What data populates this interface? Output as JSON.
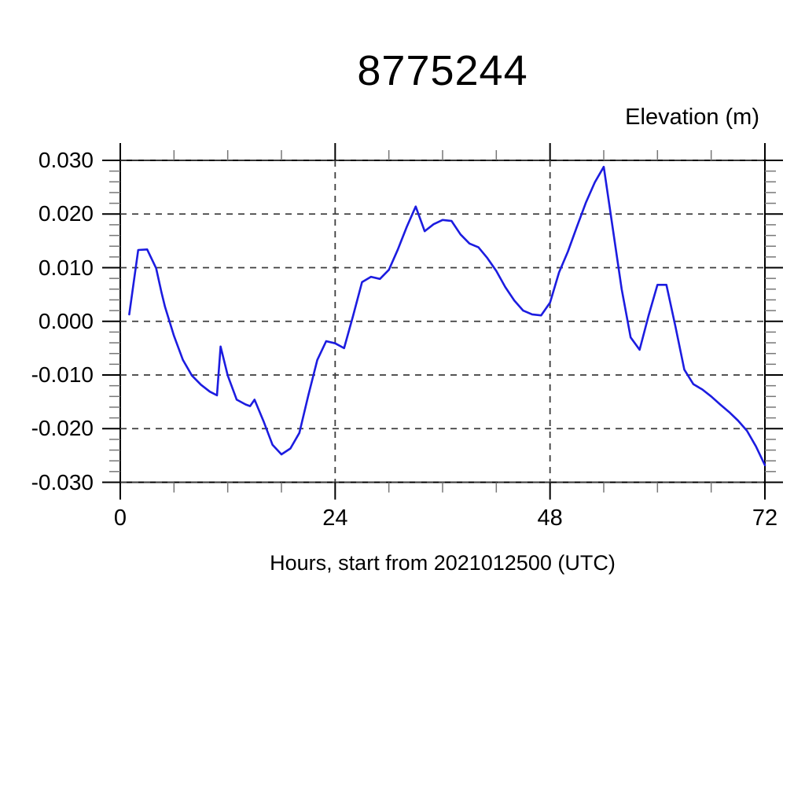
{
  "chart_data": {
    "type": "line",
    "title": "8775244",
    "ylabel": "Elevation (m)",
    "xlabel": "Hours, start from 2021012500 (UTC)",
    "xlim": [
      0,
      72
    ],
    "ylim": [
      -0.03,
      0.03
    ],
    "x_tick_values": [
      0,
      24,
      48,
      72
    ],
    "x_tick_labels": [
      "0",
      "24",
      "48",
      "72"
    ],
    "x_minor_tick_step": 6,
    "y_tick_values": [
      0.03,
      0.02,
      0.01,
      0.0,
      -0.01,
      -0.02,
      -0.03
    ],
    "y_tick_labels": [
      "0.030",
      "0.020",
      "0.010",
      "0.000",
      "-0.010",
      "-0.020",
      "-0.030"
    ],
    "y_minor_tick_step": 0.002,
    "grid": "dashed-at-major-ticks",
    "legend": "none",
    "line_color": "#1c1ce0",
    "frame_color": "#000000",
    "grid_color": "#3c3c3c",
    "minor_tick_color": "#777777",
    "series": [
      {
        "name": "elevation",
        "points": [
          [
            1,
            0.0013
          ],
          [
            2,
            0.0133
          ],
          [
            3,
            0.0134
          ],
          [
            4,
            0.0099
          ],
          [
            4.6,
            0.0054
          ],
          [
            5,
            0.0027
          ],
          [
            5.5,
            0.0
          ],
          [
            6,
            -0.0027
          ],
          [
            7,
            -0.0072
          ],
          [
            8,
            -0.0101
          ],
          [
            9,
            -0.0118
          ],
          [
            10,
            -0.0131
          ],
          [
            10.8,
            -0.0138
          ],
          [
            11.2,
            -0.0047
          ],
          [
            12,
            -0.0101
          ],
          [
            13,
            -0.0146
          ],
          [
            14,
            -0.0155
          ],
          [
            14.5,
            -0.0158
          ],
          [
            15,
            -0.0146
          ],
          [
            16,
            -0.0186
          ],
          [
            17,
            -0.023
          ],
          [
            18,
            -0.0248
          ],
          [
            19,
            -0.0237
          ],
          [
            20,
            -0.0208
          ],
          [
            21,
            -0.0138
          ],
          [
            22,
            -0.0072
          ],
          [
            23,
            -0.0037
          ],
          [
            24,
            -0.0041
          ],
          [
            25,
            -0.005
          ],
          [
            26,
            0.001
          ],
          [
            27,
            0.0073
          ],
          [
            28,
            0.0083
          ],
          [
            29,
            0.0079
          ],
          [
            30,
            0.0096
          ],
          [
            31,
            0.0134
          ],
          [
            32,
            0.0176
          ],
          [
            33,
            0.0214
          ],
          [
            34,
            0.0168
          ],
          [
            35,
            0.0181
          ],
          [
            36,
            0.0189
          ],
          [
            37,
            0.0187
          ],
          [
            38,
            0.0162
          ],
          [
            39,
            0.0145
          ],
          [
            40,
            0.0138
          ],
          [
            41,
            0.0118
          ],
          [
            42,
            0.0094
          ],
          [
            43,
            0.0064
          ],
          [
            44,
            0.0039
          ],
          [
            45,
            0.002
          ],
          [
            46,
            0.0013
          ],
          [
            47,
            0.0011
          ],
          [
            48,
            0.0035
          ],
          [
            49,
            0.0091
          ],
          [
            50,
            0.013
          ],
          [
            51,
            0.0176
          ],
          [
            52,
            0.0221
          ],
          [
            53,
            0.0259
          ],
          [
            54,
            0.0288
          ],
          [
            55,
            0.0174
          ],
          [
            56,
            0.006
          ],
          [
            57,
            -0.003
          ],
          [
            58,
            -0.0053
          ],
          [
            59,
            0.001
          ],
          [
            60,
            0.0068
          ],
          [
            61,
            0.0068
          ],
          [
            62,
            -0.0009
          ],
          [
            63,
            -0.009
          ],
          [
            64,
            -0.0117
          ],
          [
            65,
            -0.0127
          ],
          [
            66,
            -0.014
          ],
          [
            67,
            -0.0155
          ],
          [
            68,
            -0.0169
          ],
          [
            69,
            -0.0185
          ],
          [
            70,
            -0.0204
          ],
          [
            71,
            -0.0233
          ],
          [
            72,
            -0.0268
          ]
        ]
      }
    ]
  }
}
